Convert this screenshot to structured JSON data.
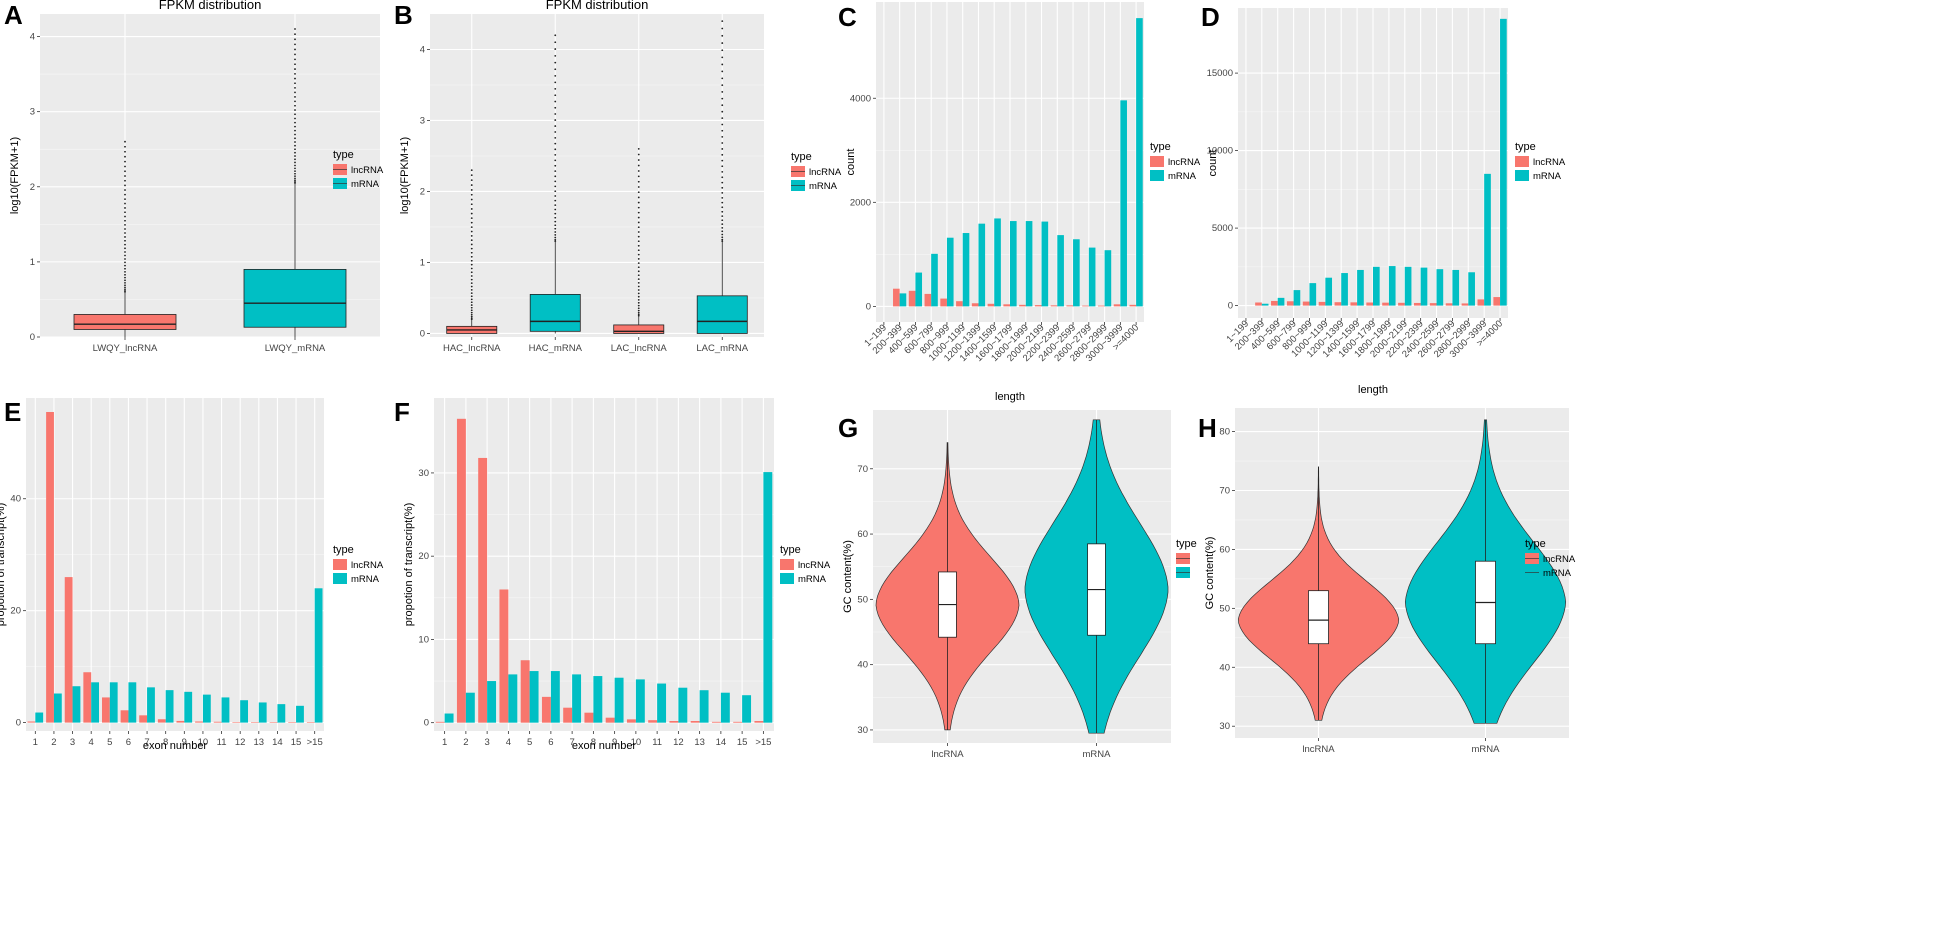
{
  "colors": {
    "lncRNA": "#f8766d",
    "mRNA": "#00bfc4",
    "panel_bg": "#ebebeb",
    "grid": "#ffffff",
    "outlier": "#222222"
  },
  "chart_data": [
    {
      "letter": "A",
      "type": "box",
      "title": "FPKM distribution",
      "xlabel": "",
      "ylabel": "log10(FPKM+1)",
      "ylim": [
        0,
        4.3
      ],
      "yticks": [
        0,
        1,
        2,
        3,
        4
      ],
      "categories": [
        "LWQY_lncRNA",
        "LWQY_mRNA"
      ],
      "boxes": [
        {
          "group": "lncRNA",
          "whisker_low": 0.0,
          "q1": 0.1,
          "median": 0.17,
          "q3": 0.3,
          "whisker_high": 0.6,
          "outlier_max": 2.6
        },
        {
          "group": "mRNA",
          "whisker_low": 0.0,
          "q1": 0.13,
          "median": 0.45,
          "q3": 0.9,
          "whisker_high": 2.05,
          "outlier_max": 4.1
        }
      ],
      "legend": {
        "title": "type",
        "items": [
          "lncRNA",
          "mRNA"
        ]
      }
    },
    {
      "letter": "B",
      "type": "box",
      "title": "FPKM distribution",
      "xlabel": "",
      "ylabel": "log10(FPKM+1)",
      "ylim": [
        -0.05,
        4.5
      ],
      "yticks": [
        0,
        1,
        2,
        3,
        4
      ],
      "categories": [
        "HAC_lncRNA",
        "HAC_mRNA",
        "LAC_lncRNA",
        "LAC_mRNA"
      ],
      "boxes": [
        {
          "group": "lncRNA",
          "whisker_low": 0.0,
          "q1": 0.0,
          "median": 0.05,
          "q3": 0.1,
          "whisker_high": 0.2,
          "outlier_max": 2.3
        },
        {
          "group": "mRNA",
          "whisker_low": 0.0,
          "q1": 0.03,
          "median": 0.17,
          "q3": 0.55,
          "whisker_high": 1.3,
          "outlier_max": 4.2
        },
        {
          "group": "lncRNA",
          "whisker_low": 0.0,
          "q1": 0.0,
          "median": 0.03,
          "q3": 0.12,
          "whisker_high": 0.25,
          "outlier_max": 2.6
        },
        {
          "group": "mRNA",
          "whisker_low": 0.0,
          "q1": 0.0,
          "median": 0.17,
          "q3": 0.53,
          "whisker_high": 1.3,
          "outlier_max": 4.4
        }
      ],
      "legend": {
        "title": "type",
        "items": [
          "lncRNA",
          "mRNA"
        ]
      }
    },
    {
      "letter": "C",
      "type": "bar",
      "title": "",
      "xlabel": "length",
      "ylabel": "count",
      "ylim": [
        -300,
        5850
      ],
      "yticks": [
        0,
        2000,
        4000
      ],
      "categories": [
        "1~199",
        "200~399",
        "400~599",
        "600~799",
        "800~999",
        "1000~1199",
        "1200~1399",
        "1400~1599",
        "1600~1799",
        "1800~1999",
        "2000~2199",
        "2200~2399",
        "2400~2599",
        "2600~2799",
        "2800~2999",
        "3000~3999",
        ">=4000"
      ],
      "series": [
        {
          "name": "lncRNA",
          "values": [
            0,
            340,
            300,
            240,
            150,
            100,
            60,
            50,
            40,
            30,
            25,
            20,
            20,
            15,
            15,
            40,
            30
          ]
        },
        {
          "name": "mRNA",
          "values": [
            0,
            250,
            650,
            1010,
            1320,
            1410,
            1590,
            1690,
            1640,
            1640,
            1630,
            1370,
            1290,
            1130,
            1080,
            3960,
            5540
          ]
        }
      ],
      "legend": {
        "title": "type",
        "items": [
          "lncRNA",
          "mRNA"
        ]
      }
    },
    {
      "letter": "D",
      "type": "bar",
      "title": "",
      "xlabel": "length",
      "ylabel": "count",
      "ylim": [
        -800,
        19200
      ],
      "yticks": [
        0,
        5000,
        10000,
        15000
      ],
      "categories": [
        "1~199",
        "200~399",
        "400~599",
        "600~799",
        "800~999",
        "1000~1199",
        "1200~1399",
        "1400~1599",
        "1600~1799",
        "1800~1999",
        "2000~2199",
        "2200~2399",
        "2400~2599",
        "2600~2799",
        "2800~2999",
        "3000~3999",
        ">=4000"
      ],
      "series": [
        {
          "name": "lncRNA",
          "values": [
            0,
            200,
            300,
            280,
            260,
            240,
            220,
            210,
            200,
            190,
            180,
            170,
            160,
            150,
            140,
            400,
            550
          ]
        },
        {
          "name": "mRNA",
          "values": [
            0,
            120,
            500,
            1000,
            1450,
            1800,
            2100,
            2300,
            2500,
            2550,
            2500,
            2450,
            2350,
            2300,
            2150,
            8500,
            18500
          ]
        }
      ],
      "legend": {
        "title": "type",
        "items": [
          "lncRNA",
          "mRNA"
        ]
      }
    },
    {
      "letter": "E",
      "type": "bar",
      "title": "",
      "xlabel": "exon number",
      "ylabel": "propotion of transcript(%)",
      "ylim": [
        -1.5,
        58
      ],
      "yticks": [
        0,
        20,
        40
      ],
      "categories": [
        "1",
        "2",
        "3",
        "4",
        "5",
        "6",
        "7",
        "8",
        "9",
        "10",
        "11",
        "12",
        "13",
        "14",
        "15",
        ">15"
      ],
      "series": [
        {
          "name": "lncRNA",
          "values": [
            0.2,
            55.5,
            26,
            9,
            4.5,
            2.2,
            1.3,
            0.6,
            0.3,
            0.2,
            0.15,
            0.1,
            0.1,
            0.1,
            0.1,
            0.1
          ]
        },
        {
          "name": "mRNA",
          "values": [
            1.8,
            5.2,
            6.5,
            7.2,
            7.2,
            7.2,
            6.3,
            5.8,
            5.5,
            5,
            4.5,
            4,
            3.6,
            3.3,
            3,
            24
          ]
        }
      ],
      "legend": {
        "title": "type",
        "items": [
          "lncRNA",
          "mRNA"
        ]
      }
    },
    {
      "letter": "F",
      "type": "bar",
      "title": "",
      "xlabel": "exon number",
      "ylabel": "propotion of transcript(%)",
      "ylim": [
        -1,
        39
      ],
      "yticks": [
        0,
        10,
        20,
        30
      ],
      "categories": [
        "1",
        "2",
        "3",
        "4",
        "5",
        "6",
        "7",
        "8",
        "9",
        "10",
        "11",
        "12",
        "13",
        "14",
        "15",
        ">15"
      ],
      "series": [
        {
          "name": "lncRNA",
          "values": [
            0.1,
            36.5,
            31.8,
            16,
            7.5,
            3.1,
            1.8,
            1.2,
            0.6,
            0.4,
            0.3,
            0.2,
            0.2,
            0.1,
            0.1,
            0.2
          ]
        },
        {
          "name": "mRNA",
          "values": [
            1.1,
            3.6,
            5,
            5.8,
            6.2,
            6.2,
            5.8,
            5.6,
            5.4,
            5.2,
            4.7,
            4.2,
            3.9,
            3.6,
            3.3,
            30.1
          ]
        }
      ],
      "legend": {
        "title": "type",
        "items": [
          "lncRNA",
          "mRNA"
        ]
      }
    },
    {
      "letter": "G",
      "type": "violin",
      "title": "",
      "xlabel": "",
      "ylabel": "GC content(%)",
      "ylim": [
        28,
        79
      ],
      "yticks": [
        30,
        40,
        50,
        60,
        70
      ],
      "categories": [
        "lncRNA",
        "mRNA"
      ],
      "violins": [
        {
          "group": "lncRNA",
          "min": 30,
          "max": 74,
          "q1": 44.2,
          "median": 49.2,
          "q3": 54.2
        },
        {
          "group": "mRNA",
          "min": 29.5,
          "max": 77.5,
          "q1": 44.5,
          "median": 51.5,
          "q3": 58.5
        }
      ],
      "legend": {
        "title": "type",
        "items": [
          "",
          ""
        ]
      }
    },
    {
      "letter": "H",
      "type": "violin",
      "title": "",
      "xlabel": "",
      "ylabel": "GC content(%)",
      "ylim": [
        28,
        84
      ],
      "yticks": [
        30,
        40,
        50,
        60,
        70,
        80
      ],
      "categories": [
        "lncRNA",
        "mRNA"
      ],
      "violins": [
        {
          "group": "lncRNA",
          "min": 31,
          "max": 74,
          "q1": 44,
          "median": 48,
          "q3": 53
        },
        {
          "group": "mRNA",
          "min": 30.5,
          "max": 82,
          "q1": 44,
          "median": 51,
          "q3": 58
        }
      ],
      "legend": {
        "title": "type",
        "items": [
          "lncRNA",
          "mRNA"
        ]
      }
    }
  ]
}
